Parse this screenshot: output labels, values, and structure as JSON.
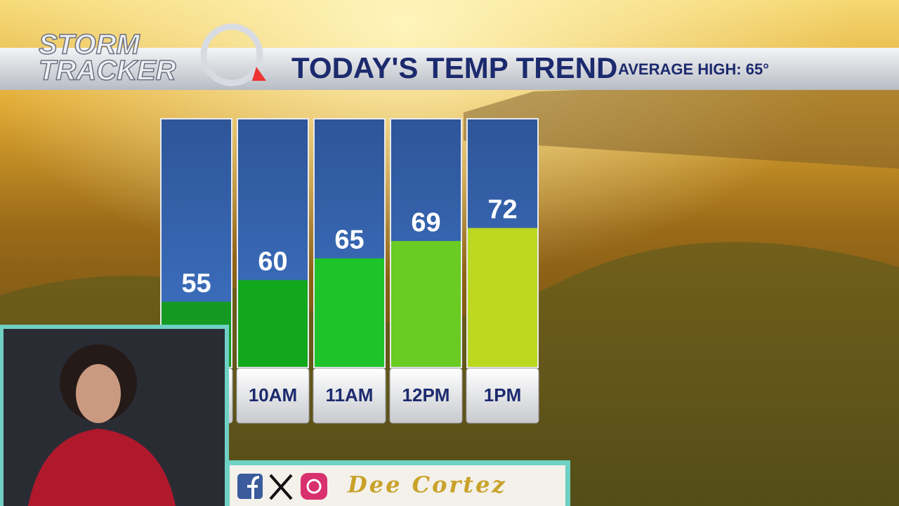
{
  "header": {
    "logo_top": "STORM",
    "logo_bottom": "TRACKER",
    "title": "TODAY'S TEMP TREND",
    "subtitle": "AVERAGE HIGH: 65°"
  },
  "chart_data": {
    "type": "bar",
    "categories": [
      null,
      "10AM",
      "11AM",
      "12PM",
      "1PM"
    ],
    "values": [
      55,
      60,
      65,
      69,
      72
    ],
    "colors": [
      "#149a22",
      "#12a81e",
      "#1ec22a",
      "#6acb22",
      "#bcd820"
    ],
    "ylim": [
      40,
      97
    ]
  },
  "footer": {
    "name": "Dee Cortez"
  }
}
